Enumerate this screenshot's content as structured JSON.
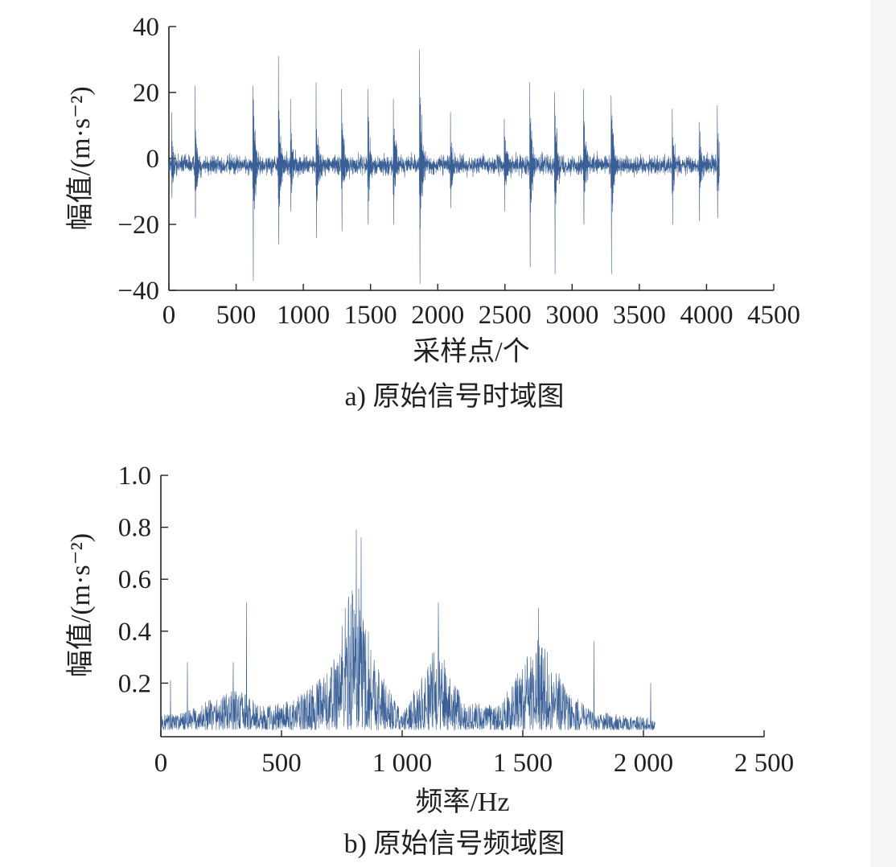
{
  "chart_data": [
    {
      "type": "line",
      "caption": "a) 原始信号时域图",
      "xlabel": "采样点/个",
      "ylabel": "幅值/(m·s⁻²)",
      "xlim": [
        0,
        4500
      ],
      "ylim": [
        -40,
        40
      ],
      "xticks": [
        0,
        500,
        1000,
        1500,
        2000,
        2500,
        3000,
        3500,
        4000,
        4500
      ],
      "xtick_labels": [
        "0",
        "500",
        "1000",
        "1500",
        "2000",
        "2500",
        "3000",
        "3500",
        "4000",
        "4500"
      ],
      "yticks": [
        40,
        20,
        0,
        -20,
        -40
      ],
      "ytick_labels": [
        "40",
        "20",
        "0",
        "−20",
        "−40"
      ],
      "series": [
        {
          "color": "#3a5f96",
          "x_range": [
            0,
            4096
          ],
          "baseline": -2,
          "noise_amplitude": 5,
          "impulses": [
            {
              "x": 20,
              "max": 14,
              "min": -12
            },
            {
              "x": 195,
              "max": 22,
              "min": -18
            },
            {
              "x": 625,
              "max": 22,
              "min": -37
            },
            {
              "x": 815,
              "max": 31,
              "min": -26
            },
            {
              "x": 905,
              "max": 18,
              "min": -16
            },
            {
              "x": 1095,
              "max": 23,
              "min": -24
            },
            {
              "x": 1285,
              "max": 21,
              "min": -22
            },
            {
              "x": 1480,
              "max": 21,
              "min": -20
            },
            {
              "x": 1670,
              "max": 18,
              "min": -20
            },
            {
              "x": 1865,
              "max": 33,
              "min": -38
            },
            {
              "x": 2095,
              "max": 14,
              "min": -15
            },
            {
              "x": 2495,
              "max": 12,
              "min": -16
            },
            {
              "x": 2685,
              "max": 23,
              "min": -33
            },
            {
              "x": 2870,
              "max": 20,
              "min": -35
            },
            {
              "x": 3085,
              "max": 21,
              "min": -20
            },
            {
              "x": 3290,
              "max": 19,
              "min": -35
            },
            {
              "x": 3745,
              "max": 15,
              "min": -20
            },
            {
              "x": 3945,
              "max": 11,
              "min": -19
            },
            {
              "x": 4080,
              "max": 16,
              "min": -18
            }
          ]
        }
      ]
    },
    {
      "type": "line",
      "caption": "b) 原始信号频域图",
      "xlabel": "频率/Hz",
      "ylabel": "幅值/(m·s⁻²)",
      "xlim": [
        0,
        2500
      ],
      "ylim": [
        0,
        1.0
      ],
      "xticks": [
        0,
        500,
        1000,
        1500,
        2000,
        2500
      ],
      "xtick_labels": [
        "0",
        "500",
        "1 000",
        "1 500",
        "2 000",
        "2 500"
      ],
      "yticks": [
        1.0,
        0.8,
        0.6,
        0.4,
        0.2
      ],
      "ytick_labels": [
        "1.0",
        "0.8",
        "0.6",
        "0.4",
        "0.2"
      ],
      "series": [
        {
          "color": "#3a5f96",
          "x_range": [
            0,
            2048
          ],
          "floor": 0.02,
          "envelope": [
            {
              "x": 0,
              "amp": 0.05
            },
            {
              "x": 100,
              "amp": 0.06
            },
            {
              "x": 200,
              "amp": 0.1
            },
            {
              "x": 320,
              "amp": 0.14
            },
            {
              "x": 420,
              "amp": 0.08
            },
            {
              "x": 550,
              "amp": 0.1
            },
            {
              "x": 700,
              "amp": 0.2
            },
            {
              "x": 800,
              "amp": 0.55
            },
            {
              "x": 900,
              "amp": 0.22
            },
            {
              "x": 1000,
              "amp": 0.05
            },
            {
              "x": 1150,
              "amp": 0.3
            },
            {
              "x": 1250,
              "amp": 0.1
            },
            {
              "x": 1400,
              "amp": 0.08
            },
            {
              "x": 1570,
              "amp": 0.32
            },
            {
              "x": 1700,
              "amp": 0.12
            },
            {
              "x": 1800,
              "amp": 0.06
            },
            {
              "x": 2048,
              "amp": 0.04
            }
          ],
          "peaks": [
            {
              "x": 40,
              "value": 0.21
            },
            {
              "x": 110,
              "value": 0.28
            },
            {
              "x": 300,
              "value": 0.28
            },
            {
              "x": 355,
              "value": 0.51
            },
            {
              "x": 810,
              "value": 0.79
            },
            {
              "x": 830,
              "value": 0.76
            },
            {
              "x": 1150,
              "value": 0.51
            },
            {
              "x": 1565,
              "value": 0.49
            },
            {
              "x": 1795,
              "value": 0.36
            },
            {
              "x": 2030,
              "value": 0.2
            }
          ]
        }
      ]
    }
  ]
}
